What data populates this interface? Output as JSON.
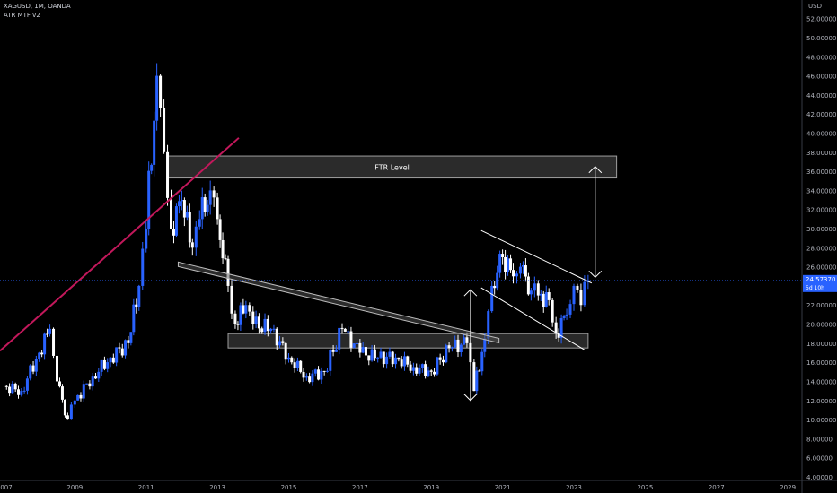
{
  "header": {
    "symbol_line": "XAGUSD, 1M, OANDA",
    "indicator": "ATR MTF v2"
  },
  "price_axis": {
    "currency": "USD",
    "labels": [
      "52.00000",
      "50.00000",
      "48.00000",
      "46.00000",
      "44.00000",
      "42.00000",
      "40.00000",
      "38.00000",
      "36.00000",
      "34.00000",
      "32.00000",
      "30.00000",
      "28.00000",
      "26.00000",
      "22.00000",
      "20.00000",
      "18.00000",
      "16.00000",
      "14.00000",
      "12.00000",
      "10.00000",
      "8.00000",
      "6.00000",
      "4.00000"
    ],
    "values": [
      52,
      50,
      48,
      46,
      44,
      42,
      40,
      38,
      36,
      34,
      32,
      30,
      28,
      26,
      22,
      20,
      18,
      16,
      14,
      12,
      10,
      8,
      6,
      4
    ],
    "current_price": "24.57370",
    "countdown": "5d 10h"
  },
  "time_axis": {
    "labels": [
      "007",
      "2009",
      "2011",
      "2013",
      "2015",
      "2017",
      "2019",
      "2021",
      "2023",
      "2025",
      "2027",
      "2029"
    ],
    "years": [
      2007,
      2009,
      2011,
      2013,
      2015,
      2017,
      2019,
      2021,
      2023,
      2025,
      2027,
      2029
    ]
  },
  "annotations": {
    "ftr_zone_label": "FTR Level",
    "ftr_zone": {
      "from": 35.3,
      "to": 37.6,
      "t_start": 2011.6,
      "t_end": 2024.2
    },
    "support_zone": {
      "from": 17.5,
      "to": 19.0,
      "t_start": 2013.3,
      "t_end": 2023.4
    },
    "uptrend_line": {
      "t1": 2006.9,
      "p1": 17.2,
      "t2": 2013.6,
      "p2": 39.5
    },
    "descending_band": {
      "t1": 2011.9,
      "p1": 26.5,
      "t2": 2020.9,
      "p2": 18.5
    },
    "channel_upper": {
      "t1": 2020.4,
      "p1": 29.8,
      "t2": 2023.5,
      "p2": 24.3
    },
    "channel_lower": {
      "t1": 2020.4,
      "p1": 23.8,
      "t2": 2023.3,
      "p2": 17.3
    },
    "arrow_left": {
      "t": 2020.1,
      "from": 12.0,
      "to": 23.6
    },
    "arrow_right": {
      "t": 2023.6,
      "from": 24.9,
      "to": 36.5
    }
  },
  "colors": {
    "bull": "#2962ff",
    "bear": "#ffffff",
    "uptrend": "#c2185b",
    "zone_fill": "#333333",
    "zone_stroke": "#9e9e9e",
    "price_tag": "#2962ff"
  },
  "chart_data": {
    "type": "candlestick",
    "title": "XAGUSD, 1M, OANDA",
    "ylim": [
      4,
      53
    ],
    "xlim": [
      2006.9,
      2029.4
    ],
    "series": [
      {
        "name": "XAGUSD",
        "t": [
          2007.0,
          2007.5,
          2008.0,
          2008.3,
          2008.5,
          2008.8,
          2009.0,
          2009.5,
          2010.0,
          2010.5,
          2010.8,
          2011.0,
          2011.3,
          2011.5,
          2011.7,
          2012.0,
          2012.3,
          2012.5,
          2012.8,
          2013.0,
          2013.3,
          2013.5,
          2013.8,
          2014.0,
          2014.5,
          2015.0,
          2015.5,
          2016.0,
          2016.5,
          2017.0,
          2017.5,
          2018.0,
          2018.5,
          2019.0,
          2019.5,
          2020.0,
          2020.2,
          2020.5,
          2020.7,
          2021.0,
          2021.3,
          2021.5,
          2021.8,
          2022.0,
          2022.3,
          2022.5,
          2022.8,
          2023.0,
          2023.2,
          2023.4
        ],
        "close": [
          13.5,
          13.0,
          17.0,
          19.5,
          14.0,
          10.0,
          12.0,
          14.5,
          16.5,
          18.0,
          24.0,
          30.0,
          46.0,
          38.0,
          30.0,
          33.0,
          28.0,
          31.0,
          34.0,
          31.0,
          24.0,
          20.0,
          22.0,
          20.0,
          19.5,
          16.5,
          14.5,
          15.0,
          19.5,
          17.0,
          16.5,
          16.5,
          15.5,
          15.0,
          17.5,
          18.0,
          13.0,
          18.5,
          24.0,
          27.0,
          25.0,
          26.0,
          23.5,
          23.0,
          22.5,
          19.0,
          21.0,
          24.0,
          22.0,
          24.6
        ]
      }
    ]
  }
}
